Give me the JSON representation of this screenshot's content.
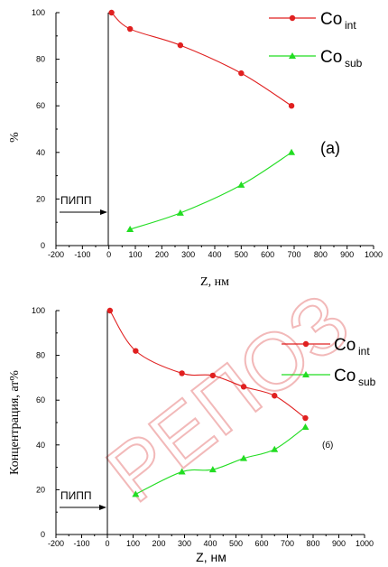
{
  "watermark": "РЕПОЗ",
  "chart_data": [
    {
      "type": "line",
      "panel_label": "(a)",
      "xlabel": "Z, нм",
      "ylabel": "%",
      "xlim": [
        -200,
        1000
      ],
      "ylim": [
        0,
        100
      ],
      "x_ticks": [
        "-200",
        "-100",
        "0",
        "100",
        "200",
        "300",
        "400",
        "500",
        "600",
        "700",
        "800",
        "900",
        "1000"
      ],
      "y_ticks": [
        "0",
        "20",
        "40",
        "60",
        "80",
        "100"
      ],
      "annotation": "ПИПП",
      "annotation_y": 14,
      "series": [
        {
          "name": "Co",
          "name_sub": "int",
          "color": "#e02020",
          "marker": "circle",
          "points": [
            [
              10,
              100
            ],
            [
              80,
              93
            ],
            [
              270,
              86
            ],
            [
              500,
              74
            ],
            [
              690,
              60
            ]
          ]
        },
        {
          "name": "Co",
          "name_sub": "sub",
          "color": "#22dd22",
          "marker": "triangle",
          "points": [
            [
              80,
              7
            ],
            [
              270,
              14
            ],
            [
              500,
              26
            ],
            [
              690,
              40
            ]
          ]
        }
      ]
    },
    {
      "type": "line",
      "panel_label": "(б)",
      "xlabel": "Z, нм",
      "ylabel": "Концентрация, ат%",
      "xlim": [
        -200,
        1000
      ],
      "ylim": [
        0,
        100
      ],
      "x_ticks": [
        "-200",
        "-100",
        "0",
        "100",
        "200",
        "300",
        "400",
        "500",
        "600",
        "700",
        "800",
        "900",
        "1000"
      ],
      "y_ticks": [
        "0",
        "20",
        "40",
        "60",
        "80",
        "100"
      ],
      "annotation": "ПИПП",
      "annotation_y": 12,
      "series": [
        {
          "name": "Co",
          "name_sub": "int",
          "color": "#e02020",
          "marker": "circle",
          "points": [
            [
              10,
              100
            ],
            [
              110,
              82
            ],
            [
              290,
              72
            ],
            [
              410,
              71
            ],
            [
              530,
              66
            ],
            [
              650,
              62
            ],
            [
              770,
              52
            ]
          ]
        },
        {
          "name": "Co",
          "name_sub": "sub",
          "color": "#22dd22",
          "marker": "triangle",
          "points": [
            [
              110,
              18
            ],
            [
              290,
              28
            ],
            [
              410,
              29
            ],
            [
              530,
              34
            ],
            [
              650,
              38
            ],
            [
              770,
              48
            ]
          ]
        }
      ]
    }
  ]
}
